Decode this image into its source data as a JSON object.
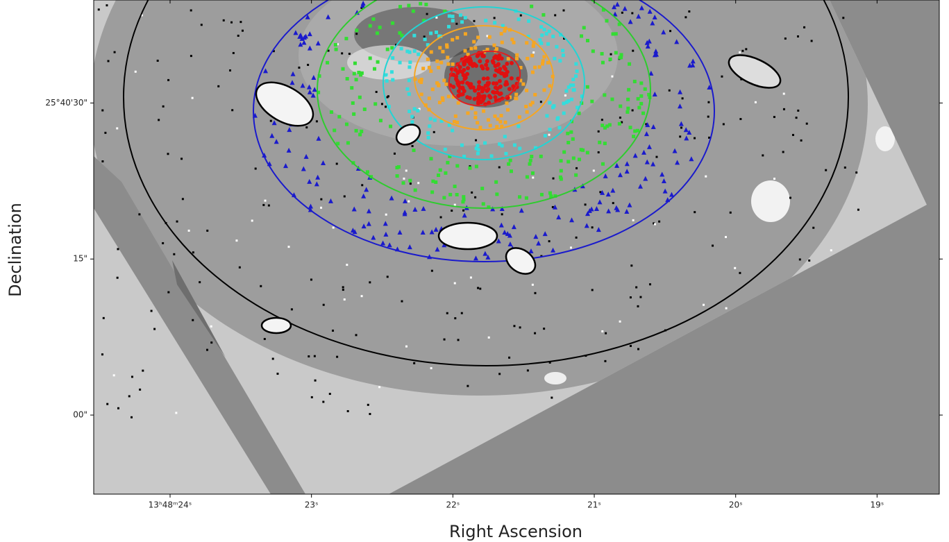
{
  "chart_data": {
    "type": "image",
    "xlabel": "Right Ascension",
    "ylabel": "Declination",
    "xlim": [
      24.54,
      18.56
    ],
    "ylim": [
      -7.6,
      39.9
    ],
    "xticks": [
      {
        "value": 24,
        "label": "13ʰ48ᵐ24ˢ"
      },
      {
        "value": 23,
        "label": "23ˢ"
      },
      {
        "value": 22,
        "label": "22ˢ"
      },
      {
        "value": 21,
        "label": "21ˢ"
      },
      {
        "value": 20,
        "label": "20ˢ"
      },
      {
        "value": 19,
        "label": "19ˢ"
      }
    ],
    "yticks": [
      {
        "value": 0,
        "label": "00\""
      },
      {
        "value": 15,
        "label": "15\""
      },
      {
        "value": 30,
        "label": "25°40'30\""
      }
    ]
  }
}
